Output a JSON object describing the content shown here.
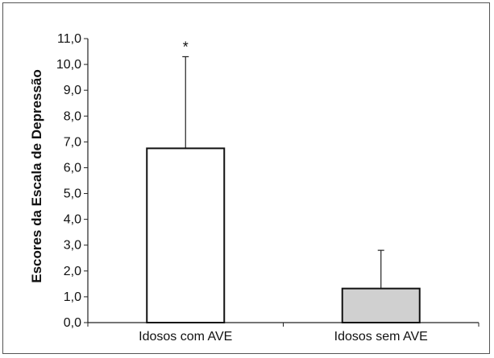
{
  "chart_data": {
    "type": "bar",
    "title": "",
    "xlabel": "",
    "ylabel": "Escores da Escala de Depressão",
    "ylim": [
      0,
      11
    ],
    "ytick_step": 1,
    "yticks": [
      "0,0",
      "1,0",
      "2,0",
      "3,0",
      "4,0",
      "5,0",
      "6,0",
      "7,0",
      "8,0",
      "9,0",
      "10,0",
      "11,0"
    ],
    "categories": [
      "Idosos com AVE",
      "Idosos sem AVE"
    ],
    "values": [
      6.75,
      1.32
    ],
    "error_upper": [
      10.3,
      2.8
    ],
    "bar_colors": [
      "#ffffff",
      "#d0d0d0"
    ],
    "annotations": [
      "*",
      ""
    ],
    "grid": false,
    "legend": "none"
  }
}
